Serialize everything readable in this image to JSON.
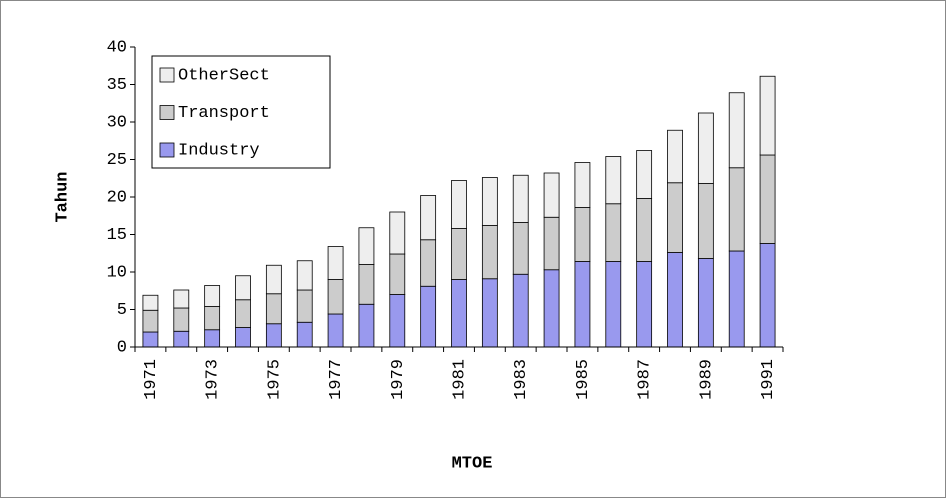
{
  "chart_data": {
    "type": "stacked_bar",
    "x_label": "MTOE",
    "y_label": "Tahun",
    "categories": [
      "1971",
      null,
      "1973",
      null,
      "1975",
      null,
      "1977",
      null,
      "1979",
      null,
      "1981",
      null,
      "1983",
      null,
      "1985",
      null,
      "1987",
      null,
      "1989",
      null,
      "1991"
    ],
    "series": [
      {
        "name": "Industry",
        "color": "#9999ee",
        "values": [
          2.0,
          2.1,
          2.3,
          2.6,
          3.1,
          3.3,
          4.4,
          5.7,
          7.0,
          8.1,
          9.0,
          9.1,
          9.7,
          10.3,
          11.4,
          11.4,
          11.4,
          12.6,
          11.8,
          12.8,
          13.8
        ]
      },
      {
        "name": "Transport",
        "color": "#cccccc",
        "values": [
          2.9,
          3.1,
          3.1,
          3.7,
          4.0,
          4.3,
          4.6,
          5.3,
          5.4,
          6.2,
          6.8,
          7.1,
          6.9,
          7.0,
          7.2,
          7.7,
          8.4,
          9.3,
          10.0,
          11.1,
          11.8
        ]
      },
      {
        "name": "OtherSect",
        "color": "#eeeeee",
        "values": [
          2.0,
          2.4,
          2.8,
          3.2,
          3.8,
          3.9,
          4.4,
          4.9,
          5.6,
          5.9,
          6.4,
          6.4,
          6.3,
          5.9,
          6.0,
          6.3,
          6.4,
          7.0,
          9.4,
          10.0,
          10.5
        ]
      }
    ],
    "ylim": [
      0,
      40
    ],
    "yticks": [
      0,
      5,
      10,
      15,
      20,
      25,
      30,
      35,
      40
    ],
    "legend": "top-left"
  }
}
